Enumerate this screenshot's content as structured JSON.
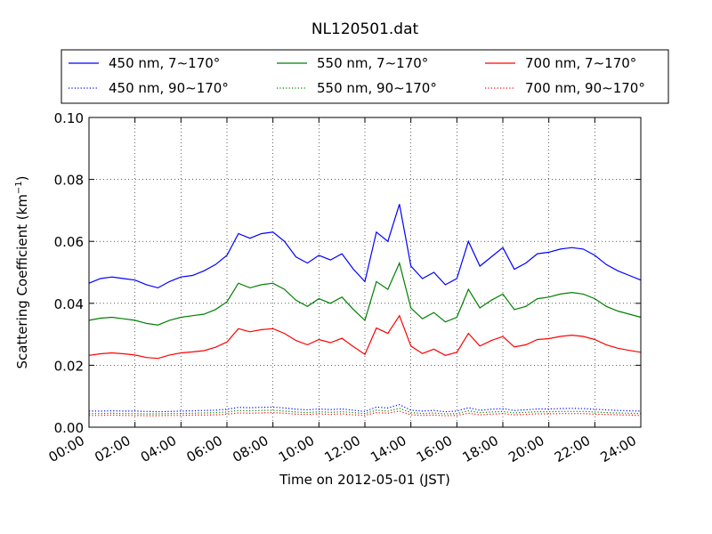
{
  "chart_data": {
    "type": "line",
    "title": "NL120501.dat",
    "xlabel": "Time on 2012-05-01 (JST)",
    "ylabel": "Scattering Coefficient (km",
    "ylabel_unit_sup": "−1",
    "ylabel_close": ")",
    "x_unit": "hours",
    "xlim": [
      0,
      24
    ],
    "ylim": [
      0.0,
      0.1
    ],
    "x_ticks": [
      0,
      2,
      4,
      6,
      8,
      10,
      12,
      14,
      16,
      18,
      20,
      22,
      24
    ],
    "x_tick_labels": [
      "00:00",
      "02:00",
      "04:00",
      "06:00",
      "08:00",
      "10:00",
      "12:00",
      "14:00",
      "16:00",
      "18:00",
      "20:00",
      "22:00",
      "24:00"
    ],
    "y_ticks": [
      0.0,
      0.02,
      0.04,
      0.06,
      0.08,
      0.1
    ],
    "y_tick_labels": [
      "0.00",
      "0.02",
      "0.04",
      "0.06",
      "0.08",
      "0.10"
    ],
    "grid": true,
    "legend_position": "above plot",
    "x": [
      0,
      0.5,
      1,
      1.5,
      2,
      2.5,
      3,
      3.5,
      4,
      4.5,
      5,
      5.5,
      6,
      6.5,
      7,
      7.5,
      8,
      8.5,
      9,
      9.5,
      10,
      10.5,
      11,
      11.5,
      12,
      12.5,
      13,
      13.5,
      14,
      14.5,
      15,
      15.5,
      16,
      16.5,
      17,
      17.5,
      18,
      18.5,
      19,
      19.5,
      20,
      20.5,
      21,
      21.5,
      22,
      22.5,
      23,
      23.5,
      24
    ],
    "series": [
      {
        "name": "450 nm, 7∼170°",
        "color": "#0000ff",
        "style": "solid",
        "values": [
          0.0465,
          0.048,
          0.0485,
          0.048,
          0.0475,
          0.046,
          0.045,
          0.047,
          0.0485,
          0.049,
          0.0505,
          0.0525,
          0.0555,
          0.0625,
          0.061,
          0.0625,
          0.063,
          0.06,
          0.055,
          0.053,
          0.0555,
          0.054,
          0.056,
          0.051,
          0.047,
          0.063,
          0.06,
          0.072,
          0.052,
          0.048,
          0.05,
          0.046,
          0.048,
          0.06,
          0.052,
          0.055,
          0.058,
          0.051,
          0.053,
          0.056,
          0.0565,
          0.0575,
          0.058,
          0.0575,
          0.0555,
          0.0525,
          0.0505,
          0.049,
          0.0475
        ]
      },
      {
        "name": "550 nm, 7∼170°",
        "color": "#008000",
        "style": "solid",
        "values": [
          0.0345,
          0.0352,
          0.0355,
          0.035,
          0.0345,
          0.0335,
          0.033,
          0.0345,
          0.0355,
          0.036,
          0.0365,
          0.038,
          0.0405,
          0.0465,
          0.045,
          0.046,
          0.0465,
          0.0445,
          0.041,
          0.039,
          0.0415,
          0.04,
          0.042,
          0.038,
          0.0345,
          0.047,
          0.0445,
          0.053,
          0.0385,
          0.035,
          0.037,
          0.034,
          0.0355,
          0.0445,
          0.0385,
          0.041,
          0.043,
          0.038,
          0.039,
          0.0415,
          0.042,
          0.043,
          0.0435,
          0.043,
          0.0415,
          0.039,
          0.0375,
          0.0365,
          0.0355
        ]
      },
      {
        "name": "700 nm, 7∼170°",
        "color": "#ff0000",
        "style": "solid",
        "values": [
          0.0232,
          0.0237,
          0.024,
          0.0237,
          0.0233,
          0.0225,
          0.0222,
          0.0233,
          0.024,
          0.0243,
          0.0247,
          0.0258,
          0.0275,
          0.0318,
          0.0308,
          0.0315,
          0.0318,
          0.0303,
          0.028,
          0.0266,
          0.0283,
          0.0273,
          0.0287,
          0.026,
          0.0235,
          0.032,
          0.0303,
          0.036,
          0.0262,
          0.0238,
          0.0252,
          0.0232,
          0.0242,
          0.0303,
          0.0262,
          0.028,
          0.0293,
          0.0259,
          0.0266,
          0.0283,
          0.0286,
          0.0293,
          0.0297,
          0.0293,
          0.0283,
          0.0266,
          0.0255,
          0.0248,
          0.0242
        ]
      },
      {
        "name": "450 nm, 90∼170°",
        "color": "#0000ff",
        "style": "dotted",
        "values": [
          0.0052,
          0.0052,
          0.0053,
          0.0052,
          0.0052,
          0.0051,
          0.005,
          0.0051,
          0.0052,
          0.0053,
          0.0054,
          0.0055,
          0.0058,
          0.0064,
          0.0063,
          0.0064,
          0.0065,
          0.0062,
          0.0058,
          0.0056,
          0.0059,
          0.0057,
          0.0059,
          0.0055,
          0.0051,
          0.0065,
          0.0062,
          0.0073,
          0.0055,
          0.0052,
          0.0054,
          0.005,
          0.0052,
          0.0063,
          0.0055,
          0.0058,
          0.006,
          0.0054,
          0.0056,
          0.0059,
          0.0059,
          0.006,
          0.0061,
          0.006,
          0.0058,
          0.0056,
          0.0054,
          0.0053,
          0.0052
        ]
      },
      {
        "name": "550 nm, 90∼170°",
        "color": "#008000",
        "style": "dotted",
        "values": [
          0.0044,
          0.0044,
          0.0045,
          0.0044,
          0.0044,
          0.0043,
          0.0043,
          0.0044,
          0.0044,
          0.0045,
          0.0046,
          0.0047,
          0.0049,
          0.0054,
          0.0053,
          0.0054,
          0.0055,
          0.0052,
          0.0049,
          0.0047,
          0.005,
          0.0048,
          0.005,
          0.0047,
          0.0044,
          0.0055,
          0.0052,
          0.0061,
          0.0047,
          0.0044,
          0.0046,
          0.0043,
          0.0044,
          0.0053,
          0.0047,
          0.0049,
          0.0051,
          0.0046,
          0.0048,
          0.005,
          0.005,
          0.0051,
          0.0051,
          0.0051,
          0.0049,
          0.0047,
          0.0046,
          0.0045,
          0.0044
        ]
      },
      {
        "name": "700 nm, 90∼170°",
        "color": "#ff0000",
        "style": "dotted",
        "values": [
          0.0038,
          0.0038,
          0.0039,
          0.0038,
          0.0038,
          0.0037,
          0.0037,
          0.0038,
          0.0038,
          0.0039,
          0.0039,
          0.004,
          0.0042,
          0.0046,
          0.0045,
          0.0046,
          0.0047,
          0.0045,
          0.0042,
          0.0041,
          0.0043,
          0.0041,
          0.0043,
          0.004,
          0.0038,
          0.0047,
          0.0045,
          0.0052,
          0.004,
          0.0038,
          0.0039,
          0.0037,
          0.0038,
          0.0045,
          0.004,
          0.0042,
          0.0044,
          0.004,
          0.0041,
          0.0043,
          0.0043,
          0.0044,
          0.0044,
          0.0044,
          0.0042,
          0.0041,
          0.004,
          0.0039,
          0.0038
        ]
      }
    ]
  }
}
